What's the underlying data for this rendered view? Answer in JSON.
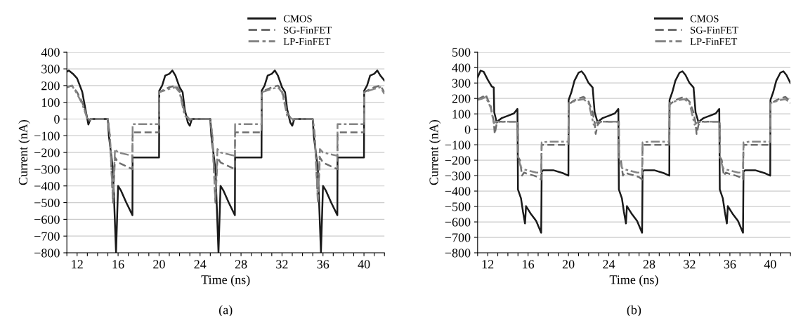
{
  "chart_data": [
    {
      "type": "line",
      "xlabel": "Time (ns)",
      "ylabel": "Current (nA)",
      "annotations": [
        "(a)"
      ],
      "grid": "y",
      "legend": "top right",
      "xlim": [
        11,
        42
      ],
      "xticks": [
        {
          "value": 11,
          "label": null
        },
        {
          "value": 12,
          "label": "12"
        },
        {
          "value": 13,
          "label": null
        },
        {
          "value": 14,
          "label": null
        },
        {
          "value": 15,
          "label": null
        },
        {
          "value": 16,
          "label": "16"
        },
        {
          "value": 17,
          "label": null
        },
        {
          "value": 18,
          "label": null
        },
        {
          "value": 19,
          "label": null
        },
        {
          "value": 20,
          "label": "20"
        },
        {
          "value": 21,
          "label": null
        },
        {
          "value": 22,
          "label": null
        },
        {
          "value": 23,
          "label": null
        },
        {
          "value": 24,
          "label": "24"
        },
        {
          "value": 25,
          "label": null
        },
        {
          "value": 26,
          "label": null
        },
        {
          "value": 27,
          "label": null
        },
        {
          "value": 28,
          "label": "28"
        },
        {
          "value": 29,
          "label": null
        },
        {
          "value": 30,
          "label": null
        },
        {
          "value": 31,
          "label": null
        },
        {
          "value": 32,
          "label": "32"
        },
        {
          "value": 33,
          "label": null
        },
        {
          "value": 34,
          "label": null
        },
        {
          "value": 35,
          "label": null
        },
        {
          "value": 36,
          "label": "36"
        },
        {
          "value": 37,
          "label": null
        },
        {
          "value": 38,
          "label": null
        },
        {
          "value": 39,
          "label": null
        },
        {
          "value": 40,
          "label": "40"
        },
        {
          "value": 41,
          "label": null
        },
        {
          "value": 42,
          "label": null
        }
      ],
      "ylim": [
        -800,
        400
      ],
      "yticks": [
        {
          "value": -800,
          "label": "−800"
        },
        {
          "value": -700,
          "label": "−700"
        },
        {
          "value": -600,
          "label": "−600"
        },
        {
          "value": -500,
          "label": "−500"
        },
        {
          "value": -400,
          "label": "−400"
        },
        {
          "value": -300,
          "label": "−300"
        },
        {
          "value": -200,
          "label": "−200"
        },
        {
          "value": -100,
          "label": "−100"
        },
        0,
        100,
        200,
        300,
        400
      ],
      "series": [
        {
          "name": "CMOS",
          "color": "#1a1a1a",
          "line_style": "solid",
          "x": [
            11,
            11.2,
            11.6,
            12,
            12.5,
            12.8,
            13.1,
            13.3,
            15,
            15.1,
            15.5,
            15.8,
            16,
            16.3,
            16.8,
            17.4,
            17.42,
            20,
            20.02,
            20.3,
            20.6,
            21,
            21.3,
            21.6,
            22,
            22.3,
            22.5,
            22.8,
            23,
            23.2,
            25,
            25.1,
            25.5,
            25.8,
            26,
            26.3,
            26.8,
            27.4,
            27.42,
            30,
            30.02,
            30.3,
            30.6,
            31,
            31.3,
            31.6,
            32,
            32.3,
            32.5,
            32.8,
            33,
            33.2,
            35,
            35.1,
            35.5,
            35.8,
            36,
            36.3,
            36.8,
            37.4,
            37.42,
            40,
            40.02,
            40.3,
            40.6,
            41,
            41.3,
            41.6,
            42
          ],
          "values": [
            283,
            290,
            270,
            243,
            163,
            63,
            -33,
            0,
            0,
            -100,
            -300,
            -800,
            -400,
            -430,
            -500,
            -575,
            -230,
            -230,
            170,
            200,
            260,
            270,
            290,
            260,
            190,
            160,
            60,
            -20,
            -40,
            0,
            0,
            -100,
            -300,
            -800,
            -400,
            -430,
            -500,
            -575,
            -230,
            -230,
            170,
            200,
            260,
            270,
            290,
            260,
            190,
            160,
            60,
            -20,
            -40,
            0,
            0,
            -100,
            -300,
            -800,
            -400,
            -430,
            -500,
            -575,
            -230,
            -230,
            170,
            200,
            260,
            270,
            290,
            260,
            230
          ]
        },
        {
          "name": "SG-FinFET",
          "color": "#6e6e6e",
          "line_style": "dashed",
          "x": [
            11,
            11.5,
            12,
            12.5,
            13,
            13.2,
            13.4,
            15,
            15.2,
            15.5,
            15.7,
            16,
            17.4,
            17.42,
            20,
            20.02,
            20.3,
            21,
            21.6,
            22,
            22.5,
            23,
            23.2,
            25,
            25.2,
            25.5,
            25.7,
            26,
            27.4,
            27.42,
            30,
            30.02,
            30.3,
            31,
            31.6,
            32,
            32.5,
            33,
            33.2,
            35,
            35.2,
            35.5,
            35.7,
            36,
            37.4,
            37.42,
            40,
            40.02,
            40.3,
            41,
            41.6,
            42
          ],
          "values": [
            190,
            200,
            160,
            100,
            10,
            -10,
            0,
            0,
            -100,
            -500,
            -230,
            -260,
            -300,
            -80,
            -80,
            160,
            170,
            190,
            200,
            170,
            40,
            -10,
            0,
            0,
            -100,
            -500,
            -230,
            -260,
            -300,
            -80,
            -80,
            160,
            170,
            190,
            200,
            170,
            40,
            -10,
            0,
            0,
            -100,
            -500,
            -230,
            -260,
            -300,
            -80,
            -80,
            160,
            170,
            190,
            200,
            160
          ]
        },
        {
          "name": "LP-FinFET",
          "color": "#858585",
          "line_style": "dashdot",
          "x": [
            11,
            11.5,
            12,
            12.5,
            13,
            15,
            15.2,
            15.5,
            15.7,
            16,
            17.4,
            17.42,
            20,
            20.02,
            21,
            21.6,
            22,
            22.5,
            23,
            25,
            25.2,
            25.5,
            25.7,
            26,
            27.4,
            27.42,
            30,
            30.02,
            31,
            31.6,
            32,
            32.5,
            33,
            35,
            35.2,
            35.5,
            35.7,
            36,
            37.4,
            37.42,
            40,
            40.02,
            41,
            41.6,
            42
          ],
          "values": [
            190,
            200,
            150,
            90,
            0,
            0,
            -100,
            -480,
            -180,
            -200,
            -220,
            -30,
            -30,
            160,
            180,
            190,
            160,
            20,
            0,
            0,
            -100,
            -480,
            -180,
            -200,
            -220,
            -30,
            -30,
            160,
            180,
            190,
            160,
            20,
            0,
            0,
            -100,
            -480,
            -180,
            -200,
            -220,
            -30,
            -30,
            160,
            180,
            190,
            150
          ]
        }
      ]
    },
    {
      "type": "line",
      "xlabel": "Time (ns)",
      "ylabel": "Current (nA)",
      "annotations": [
        "(b)"
      ],
      "grid": "y",
      "legend": "top right",
      "xlim": [
        11,
        42
      ],
      "xticks": [
        {
          "value": 11,
          "label": null
        },
        {
          "value": 12,
          "label": "12"
        },
        {
          "value": 13,
          "label": null
        },
        {
          "value": 14,
          "label": null
        },
        {
          "value": 15,
          "label": null
        },
        {
          "value": 16,
          "label": "16"
        },
        {
          "value": 17,
          "label": null
        },
        {
          "value": 18,
          "label": null
        },
        {
          "value": 19,
          "label": null
        },
        {
          "value": 20,
          "label": "20"
        },
        {
          "value": 21,
          "label": null
        },
        {
          "value": 22,
          "label": null
        },
        {
          "value": 23,
          "label": null
        },
        {
          "value": 24,
          "label": "24"
        },
        {
          "value": 25,
          "label": null
        },
        {
          "value": 26,
          "label": null
        },
        {
          "value": 27,
          "label": null
        },
        {
          "value": 28,
          "label": "28"
        },
        {
          "value": 29,
          "label": null
        },
        {
          "value": 30,
          "label": null
        },
        {
          "value": 31,
          "label": null
        },
        {
          "value": 32,
          "label": "32"
        },
        {
          "value": 33,
          "label": null
        },
        {
          "value": 34,
          "label": null
        },
        {
          "value": 35,
          "label": null
        },
        {
          "value": 36,
          "label": "36"
        },
        {
          "value": 37,
          "label": null
        },
        {
          "value": 38,
          "label": null
        },
        {
          "value": 39,
          "label": null
        },
        {
          "value": 40,
          "label": "40"
        },
        {
          "value": 41,
          "label": null
        },
        {
          "value": 42,
          "label": null
        }
      ],
      "ylim": [
        -800,
        500
      ],
      "yticks": [
        {
          "value": -800,
          "label": "−800"
        },
        {
          "value": -700,
          "label": "−700"
        },
        {
          "value": -600,
          "label": "−600"
        },
        {
          "value": -500,
          "label": "−500"
        },
        {
          "value": -400,
          "label": "−400"
        },
        {
          "value": -300,
          "label": "−300"
        },
        {
          "value": -200,
          "label": "−200"
        },
        {
          "value": -100,
          "label": "−100"
        },
        0,
        100,
        200,
        300,
        400,
        500
      ],
      "series": [
        {
          "name": "CMOS",
          "color": "#1a1a1a",
          "line_style": "solid",
          "x": [
            11,
            11.3,
            11.6,
            12,
            12.4,
            12.6,
            12.65,
            12.9,
            13.1,
            13.4,
            14,
            14.6,
            14.95,
            15,
            15.3,
            15.5,
            15.7,
            15.8,
            16.3,
            16.8,
            17.3,
            17.35,
            17.5,
            18.5,
            19.5,
            20,
            20.02,
            20.3,
            20.6,
            21,
            21.3,
            21.6,
            22,
            22.4,
            22.6,
            22.9,
            23.1,
            23.4,
            24,
            24.6,
            24.95,
            25,
            25.3,
            25.5,
            25.7,
            25.8,
            26.3,
            26.8,
            27.3,
            27.35,
            27.5,
            28.5,
            29.5,
            30,
            30.02,
            30.3,
            30.6,
            31,
            31.3,
            31.6,
            32,
            32.4,
            32.6,
            32.9,
            33.1,
            33.4,
            34,
            34.6,
            34.95,
            35,
            35.3,
            35.5,
            35.7,
            35.8,
            36.3,
            36.8,
            37.3,
            37.35,
            37.5,
            38.5,
            39.5,
            40,
            40.02,
            40.3,
            40.6,
            41,
            41.3,
            41.6,
            42
          ],
          "values": [
            337,
            380,
            373,
            322,
            278,
            271,
            110,
            44,
            59,
            73,
            88,
            103,
            132,
            -390,
            -447,
            -535,
            -610,
            -498,
            -550,
            -593,
            -670,
            -275,
            -265,
            -265,
            -285,
            -300,
            190,
            242,
            315,
            366,
            376,
            352,
            300,
            271,
            110,
            44,
            59,
            73,
            88,
            103,
            132,
            -390,
            -447,
            -535,
            -610,
            -498,
            -550,
            -593,
            -670,
            -275,
            -265,
            -265,
            -285,
            -300,
            190,
            242,
            315,
            366,
            376,
            352,
            300,
            271,
            110,
            44,
            59,
            73,
            88,
            103,
            132,
            -390,
            -447,
            -535,
            -610,
            -498,
            -550,
            -593,
            -670,
            -275,
            -265,
            -265,
            -285,
            -300,
            190,
            242,
            315,
            366,
            376,
            352,
            300
          ]
        },
        {
          "name": "SG-FinFET",
          "color": "#6e6e6e",
          "line_style": "dashed",
          "x": [
            11,
            11.5,
            11.8,
            12.3,
            12.6,
            12.7,
            12.9,
            13.2,
            15,
            15.02,
            15.2,
            15.4,
            15.6,
            16,
            16.6,
            17,
            17.3,
            17.35,
            20,
            20.02,
            20.5,
            21,
            21.5,
            22,
            22.4,
            22.6,
            22.7,
            22.9,
            23.2,
            25,
            25.02,
            25.2,
            25.4,
            25.6,
            26,
            26.6,
            27,
            27.3,
            27.35,
            30,
            30.02,
            30.5,
            31,
            31.5,
            32,
            32.4,
            32.6,
            32.7,
            32.9,
            33.2,
            35,
            35.02,
            35.2,
            35.4,
            35.6,
            36,
            36.6,
            37,
            37.3,
            37.35,
            40,
            40.02,
            40.5,
            41,
            41.5,
            42
          ],
          "values": [
            195,
            210,
            225,
            150,
            50,
            -30,
            40,
            50,
            50,
            -180,
            -200,
            -300,
            -280,
            -290,
            -300,
            -310,
            -325,
            -100,
            -100,
            160,
            185,
            200,
            210,
            180,
            110,
            40,
            -30,
            30,
            50,
            50,
            -180,
            -200,
            -300,
            -280,
            -290,
            -300,
            -310,
            -325,
            -100,
            -100,
            160,
            185,
            200,
            210,
            180,
            110,
            40,
            -30,
            30,
            50,
            50,
            -180,
            -200,
            -300,
            -280,
            -290,
            -300,
            -310,
            -325,
            -100,
            -100,
            160,
            185,
            200,
            210,
            180
          ]
        },
        {
          "name": "LP-FinFET",
          "color": "#858585",
          "line_style": "dashdot",
          "x": [
            11,
            11.5,
            11.8,
            12.3,
            12.6,
            12.9,
            15,
            15.02,
            15.3,
            15.6,
            16.2,
            16.8,
            17.3,
            17.35,
            18,
            20,
            20.02,
            21,
            21.5,
            22,
            22.5,
            22.9,
            25,
            25.02,
            25.3,
            25.6,
            26.2,
            26.8,
            27.3,
            27.35,
            28,
            30,
            30.02,
            31,
            31.5,
            32,
            32.5,
            32.9,
            35,
            35.02,
            35.3,
            35.6,
            36.2,
            36.8,
            37.3,
            37.35,
            38,
            40,
            40.02,
            41,
            41.5,
            42
          ],
          "values": [
            190,
            200,
            210,
            140,
            40,
            50,
            50,
            -180,
            -250,
            -260,
            -270,
            -280,
            -280,
            -85,
            -80,
            -80,
            170,
            190,
            195,
            170,
            30,
            50,
            50,
            -180,
            -250,
            -260,
            -270,
            -280,
            -280,
            -85,
            -80,
            -80,
            170,
            190,
            195,
            170,
            30,
            50,
            50,
            -180,
            -250,
            -260,
            -270,
            -280,
            -280,
            -85,
            -80,
            -80,
            170,
            190,
            195,
            170
          ]
        }
      ]
    }
  ]
}
